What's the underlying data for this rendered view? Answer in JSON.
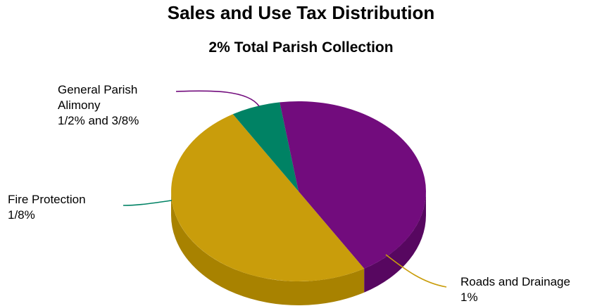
{
  "chart_data": {
    "type": "pie",
    "title": "Sales and Use Tax Distribution",
    "subtitle": "2% Total Parish Collection",
    "slices": [
      {
        "label_lines": [
          "Roads and Drainage",
          "1%"
        ],
        "value": 1.0,
        "color": "#C99D0B",
        "side_color": "#A88200"
      },
      {
        "label_lines": [
          "Fire Protection",
          "1/8%"
        ],
        "value": 0.125,
        "color": "#008264",
        "side_color": "#00654D"
      },
      {
        "label_lines": [
          "General Parish",
          "Alimony",
          "1/2% and 3/8%"
        ],
        "value": 0.875,
        "color": "#720C7D",
        "side_color": "#570760"
      }
    ],
    "style": "3d-pie",
    "legend": "none"
  }
}
